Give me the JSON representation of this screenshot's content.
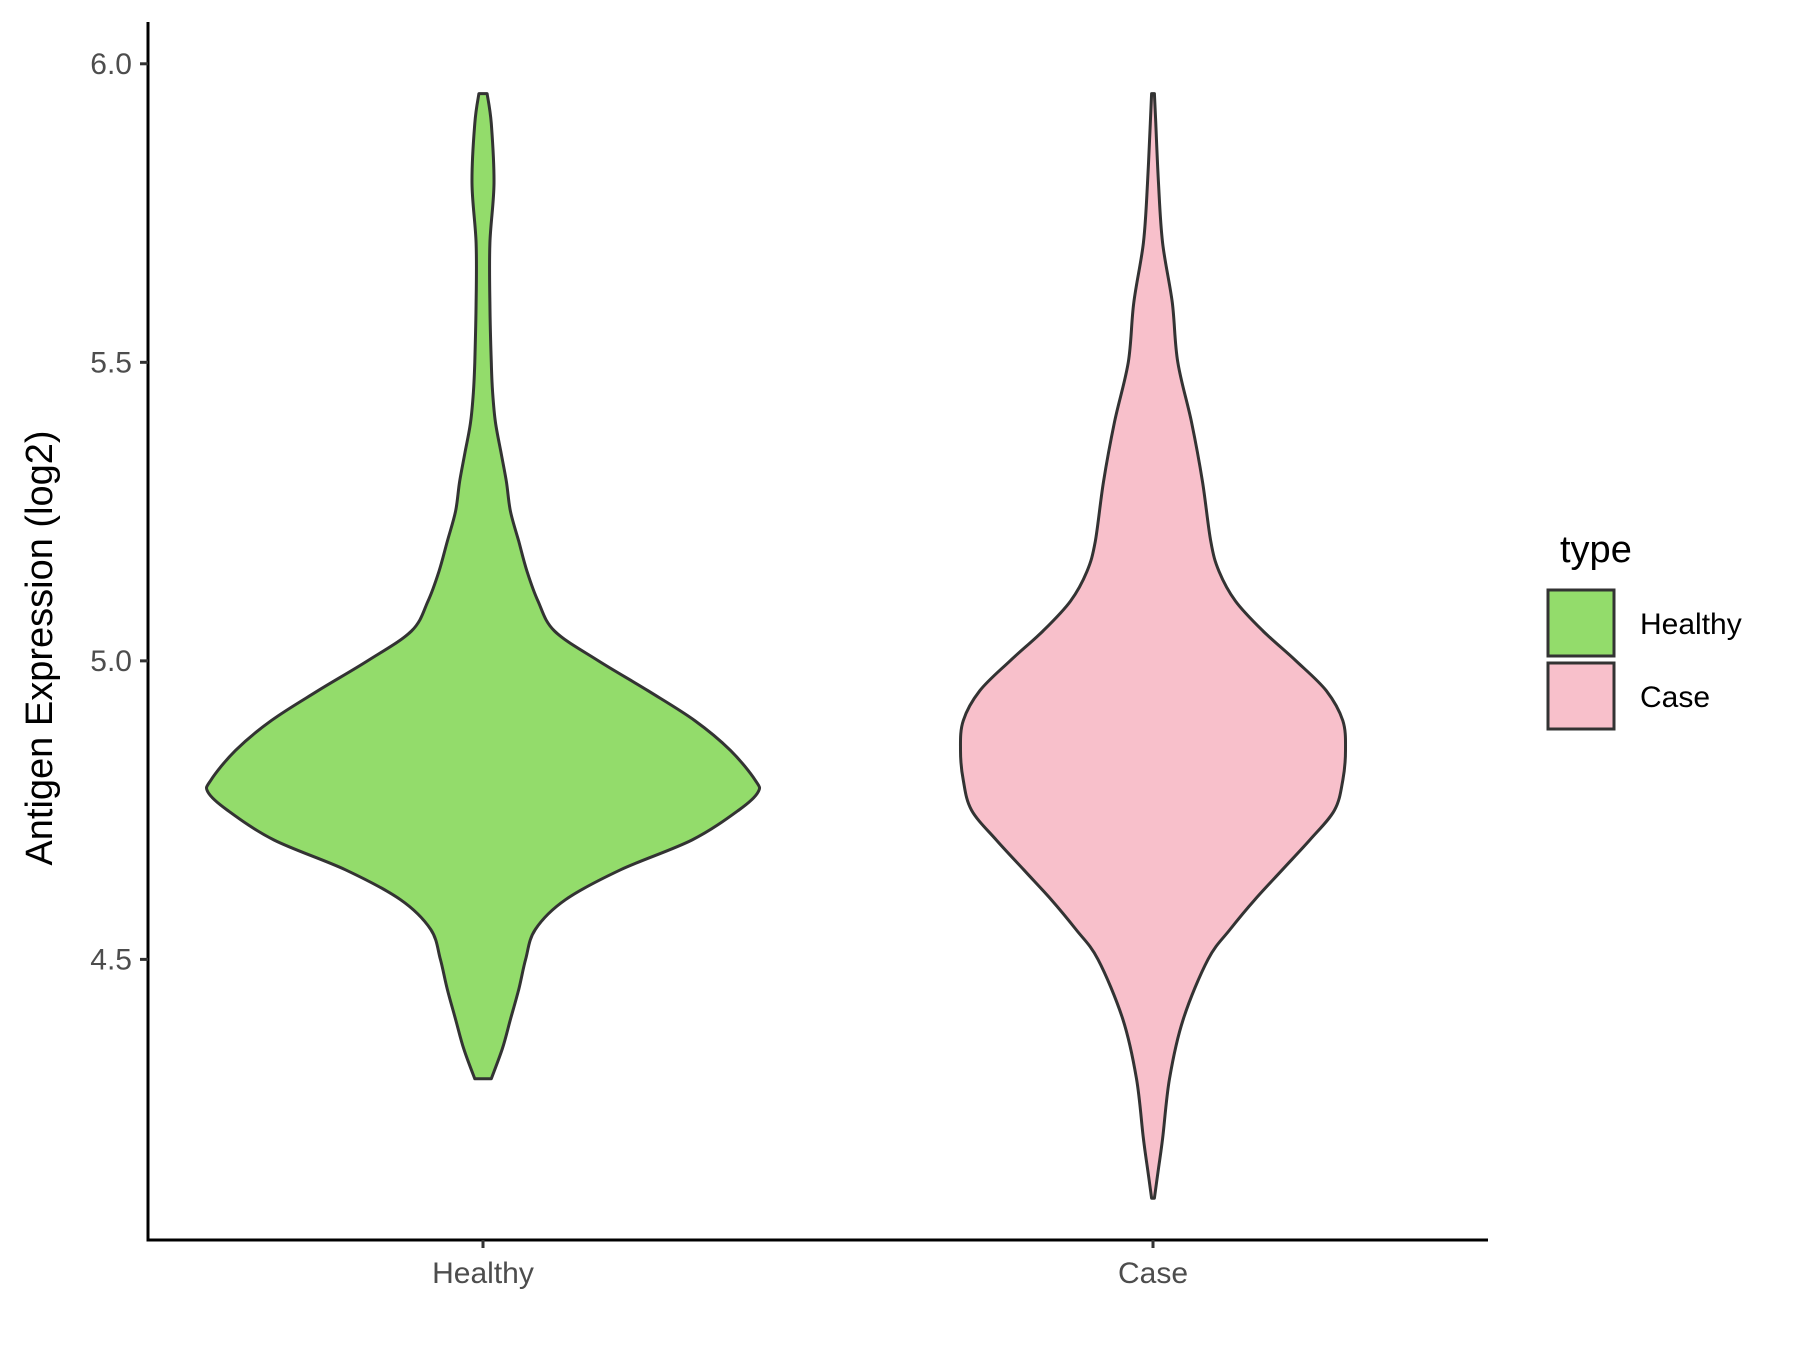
{
  "chart_data": {
    "type": "violin",
    "title": "",
    "xlabel": "",
    "ylabel": "Antigen Expression (log2)",
    "ylim": [
      4.03,
      6.07
    ],
    "yticks": [
      "4.5",
      "5.0",
      "5.5",
      "6.0"
    ],
    "grid": false,
    "legend": {
      "title": "type",
      "placement": "right"
    },
    "categories": [
      "Healthy",
      "Case"
    ],
    "series": [
      {
        "name": "Healthy",
        "color": "#93DC6B",
        "min": 4.3,
        "max": 5.95,
        "profile": [
          [
            4.3,
            0.03
          ],
          [
            4.35,
            0.07
          ],
          [
            4.4,
            0.1
          ],
          [
            4.45,
            0.13
          ],
          [
            4.5,
            0.155
          ],
          [
            4.55,
            0.19
          ],
          [
            4.6,
            0.3
          ],
          [
            4.65,
            0.5
          ],
          [
            4.7,
            0.76
          ],
          [
            4.75,
            0.93
          ],
          [
            4.78,
            1.0
          ],
          [
            4.8,
            0.99
          ],
          [
            4.85,
            0.9
          ],
          [
            4.9,
            0.77
          ],
          [
            4.95,
            0.6
          ],
          [
            5.0,
            0.42
          ],
          [
            5.05,
            0.26
          ],
          [
            5.1,
            0.2
          ],
          [
            5.15,
            0.16
          ],
          [
            5.2,
            0.13
          ],
          [
            5.25,
            0.1
          ],
          [
            5.3,
            0.085
          ],
          [
            5.35,
            0.065
          ],
          [
            5.4,
            0.045
          ],
          [
            5.45,
            0.035
          ],
          [
            5.5,
            0.03
          ],
          [
            5.6,
            0.025
          ],
          [
            5.7,
            0.025
          ],
          [
            5.8,
            0.04
          ],
          [
            5.9,
            0.03
          ],
          [
            5.95,
            0.015
          ]
        ]
      },
      {
        "name": "Case",
        "color": "#F8C0CB",
        "min": 4.1,
        "max": 5.95,
        "profile": [
          [
            4.1,
            0.005
          ],
          [
            4.15,
            0.02
          ],
          [
            4.2,
            0.035
          ],
          [
            4.3,
            0.06
          ],
          [
            4.4,
            0.11
          ],
          [
            4.5,
            0.2
          ],
          [
            4.55,
            0.28
          ],
          [
            4.6,
            0.37
          ],
          [
            4.65,
            0.47
          ],
          [
            4.7,
            0.57
          ],
          [
            4.75,
            0.66
          ],
          [
            4.8,
            0.69
          ],
          [
            4.85,
            0.7
          ],
          [
            4.9,
            0.69
          ],
          [
            4.95,
            0.63
          ],
          [
            5.0,
            0.52
          ],
          [
            5.05,
            0.4
          ],
          [
            5.1,
            0.3
          ],
          [
            5.15,
            0.24
          ],
          [
            5.2,
            0.21
          ],
          [
            5.3,
            0.18
          ],
          [
            5.4,
            0.14
          ],
          [
            5.5,
            0.09
          ],
          [
            5.6,
            0.07
          ],
          [
            5.7,
            0.035
          ],
          [
            5.8,
            0.02
          ],
          [
            5.9,
            0.01
          ],
          [
            5.95,
            0.005
          ]
        ]
      }
    ]
  }
}
